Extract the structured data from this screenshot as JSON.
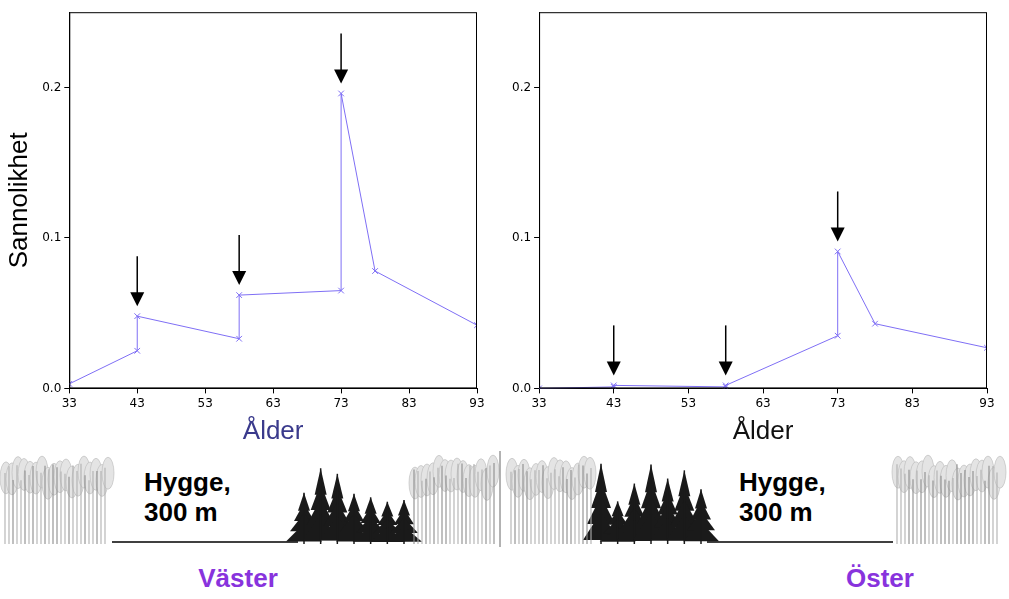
{
  "chart_data": [
    {
      "type": "line",
      "y_label": "Sannolikhet",
      "x_label": "Ålder",
      "x": [
        33,
        43,
        43,
        58,
        58,
        73,
        73,
        78,
        93
      ],
      "values": [
        0.003,
        0.025,
        0.048,
        0.033,
        0.062,
        0.065,
        0.196,
        0.078,
        0.042
      ],
      "color": "#7f6ff5",
      "marker": "x",
      "xlim": [
        33,
        93
      ],
      "xticks": [
        33,
        43,
        53,
        63,
        73,
        83,
        93
      ],
      "ylim": [
        0,
        0.25
      ],
      "yticks": [
        {
          "value": 0,
          "label": "0.0"
        },
        0.1,
        0.2
      ],
      "grid": false,
      "arrows": [
        43,
        58,
        73
      ],
      "clearcut_label": "Hygge, 300 m",
      "caption": "Väster"
    },
    {
      "type": "line",
      "x_label": "Ålder",
      "x": [
        33,
        43,
        43,
        58,
        58,
        73,
        73,
        78,
        93
      ],
      "values": [
        0.0,
        0.001,
        0.002,
        0.001,
        0.002,
        0.035,
        0.091,
        0.043,
        0.027
      ],
      "color": "#7f6ff5",
      "marker": "x",
      "xlim": [
        33,
        93
      ],
      "xticks": [
        33,
        43,
        53,
        63,
        73,
        83,
        93
      ],
      "ylim": [
        0,
        0.25
      ],
      "yticks": [
        {
          "value": 0,
          "label": "0.0"
        },
        0.1,
        0.2
      ],
      "grid": false,
      "arrows": [
        43,
        58,
        73
      ],
      "clearcut_label": "Hygge, 300 m",
      "caption": "Öster"
    }
  ]
}
